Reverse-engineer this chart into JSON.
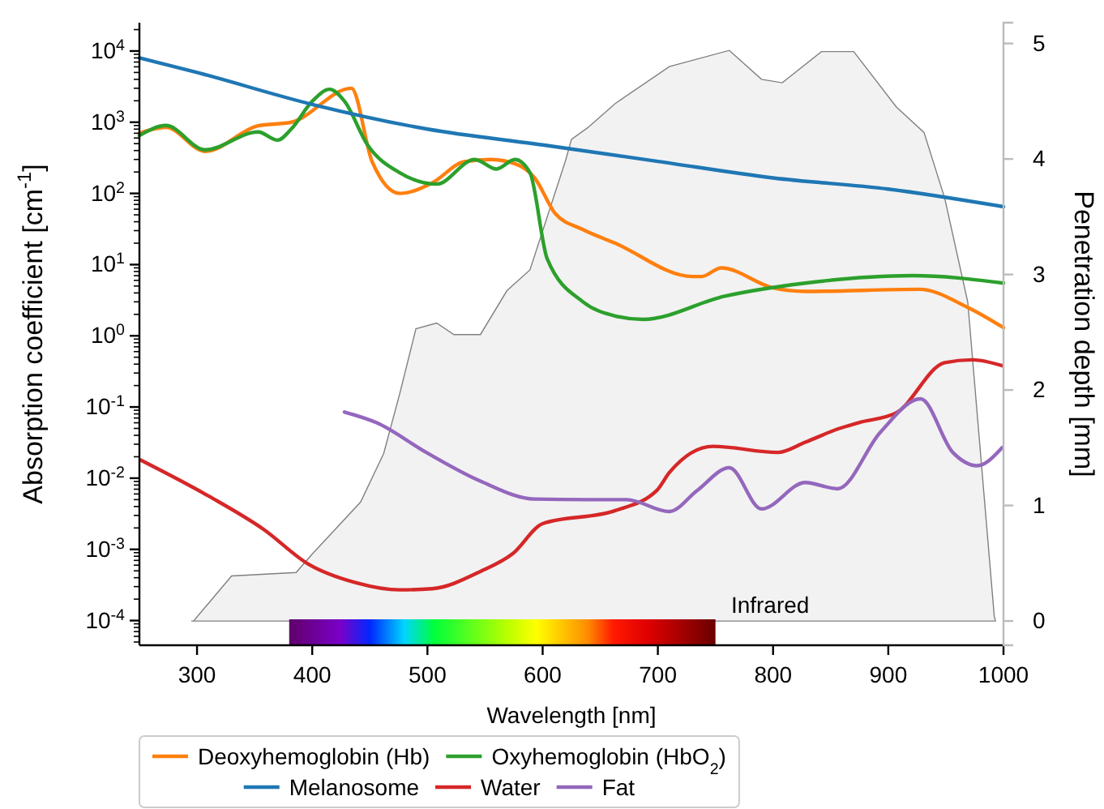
{
  "chart_data": {
    "type": "line",
    "xlabel": "Wavelength [nm]",
    "ylabel": "Absorption coefficient [cm$^{-1}$]",
    "y2label": "Penetration depth [mm]",
    "xlim": [
      250,
      1000
    ],
    "xticks": [
      300,
      400,
      500,
      600,
      700,
      800,
      900,
      1000
    ],
    "ylim": [
      4.5e-05,
      25000
    ],
    "log": "y",
    "yticks": [
      {
        "value": 0.0001,
        "label": "10$^{-4}$"
      },
      {
        "value": 0.001,
        "label": "10$^{-3}$"
      },
      {
        "value": 0.01,
        "label": "10$^{-2}$"
      },
      {
        "value": 0.1,
        "label": "10$^{-1}$"
      },
      {
        "value": 1,
        "label": "10$^{0}$"
      },
      {
        "value": 10,
        "label": "10$^{1}$"
      },
      {
        "value": 100,
        "label": "10$^{2}$"
      },
      {
        "value": 1000,
        "label": "10$^{3}$"
      },
      {
        "value": 10000,
        "label": "10$^{4}$"
      }
    ],
    "y2lim": [
      -0.21,
      5.18
    ],
    "y2ticks": [
      0,
      1,
      2,
      3,
      4,
      5
    ],
    "grid": false,
    "legend": "bottom",
    "annotations": [
      "Infrared"
    ],
    "series": [
      {
        "type": "area",
        "axis": "y2",
        "color": "#f2f2f2",
        "x": [
          295,
          297,
          330,
          386,
          400,
          442,
          462,
          476,
          490,
          508,
          523,
          546,
          569,
          589,
          620,
          625,
          639,
          663,
          710,
          762,
          790,
          808,
          842,
          870,
          907,
          931,
          949,
          969,
          992,
          993
        ],
        "values": [
          0,
          0,
          0.39,
          0.42,
          0.58,
          1.03,
          1.45,
          1.97,
          2.53,
          2.58,
          2.48,
          2.48,
          2.86,
          3.04,
          3.99,
          4.17,
          4.27,
          4.48,
          4.8,
          4.94,
          4.69,
          4.66,
          4.93,
          4.93,
          4.45,
          4.23,
          3.66,
          2.76,
          0.04,
          0
        ]
      },
      {
        "name": "Deoxyhemoglobin (Hb)",
        "color": "#ff7f0e",
        "x": [
          250,
          273,
          307,
          353,
          382,
          434,
          452,
          476,
          504,
          532,
          555,
          579,
          593,
          611,
          635,
          663,
          730,
          738,
          755,
          800,
          828,
          927,
          969,
          1000
        ],
        "values": [
          700,
          850,
          390,
          890,
          1000,
          3000,
          280,
          100,
          140,
          280,
          300,
          250,
          165,
          52,
          31,
          20,
          6.8,
          6.8,
          9,
          4.7,
          4.2,
          4.5,
          2.5,
          1.3
        ]
      },
      {
        "name": "Oxyhemoglobin (HbO$_{2}$)",
        "color": "#2ca02c",
        "x": [
          250,
          273,
          307,
          353,
          370,
          382,
          400,
          415,
          428,
          448,
          476,
          508,
          541,
          560,
          576,
          589,
          604,
          635,
          663,
          687,
          758,
          828,
          921,
          1000
        ],
        "values": [
          650,
          900,
          410,
          730,
          560,
          810,
          1970,
          2900,
          1970,
          480,
          195,
          135,
          300,
          220,
          300,
          195,
          12,
          3,
          1.9,
          1.7,
          3.6,
          5.5,
          7,
          5.5
        ]
      },
      {
        "name": "Melanosome",
        "color": "#1f77b4",
        "x": [
          250,
          300,
          400,
          500,
          600,
          700,
          800,
          900,
          1000
        ],
        "values": [
          8000,
          5000,
          1780,
          800,
          480,
          282,
          165,
          115,
          65
        ]
      },
      {
        "name": "Water",
        "color": "#d62728",
        "x": [
          251,
          311,
          358,
          396,
          438,
          476,
          504,
          546,
          574,
          600,
          663,
          699,
          710,
          748,
          804,
          828,
          856,
          874,
          907,
          949,
          973,
          999
        ],
        "values": [
          0.018,
          0.0055,
          0.0019,
          0.00063,
          0.00034,
          0.00027,
          0.00028,
          0.00049,
          0.00087,
          0.0023,
          0.0035,
          0.0067,
          0.012,
          0.028,
          0.023,
          0.032,
          0.049,
          0.06,
          0.083,
          0.42,
          0.46,
          0.38
        ]
      },
      {
        "name": "Fat",
        "color": "#9467bd",
        "x": [
          428,
          456,
          499,
          546,
          593,
          639,
          673,
          710,
          734,
          762,
          790,
          828,
          856,
          893,
          928,
          956,
          977,
          999
        ],
        "values": [
          0.085,
          0.06,
          0.023,
          0.0091,
          0.0051,
          0.005,
          0.005,
          0.0034,
          0.0067,
          0.014,
          0.0037,
          0.0087,
          0.0071,
          0.044,
          0.13,
          0.023,
          0.015,
          0.027
        ]
      }
    ]
  }
}
